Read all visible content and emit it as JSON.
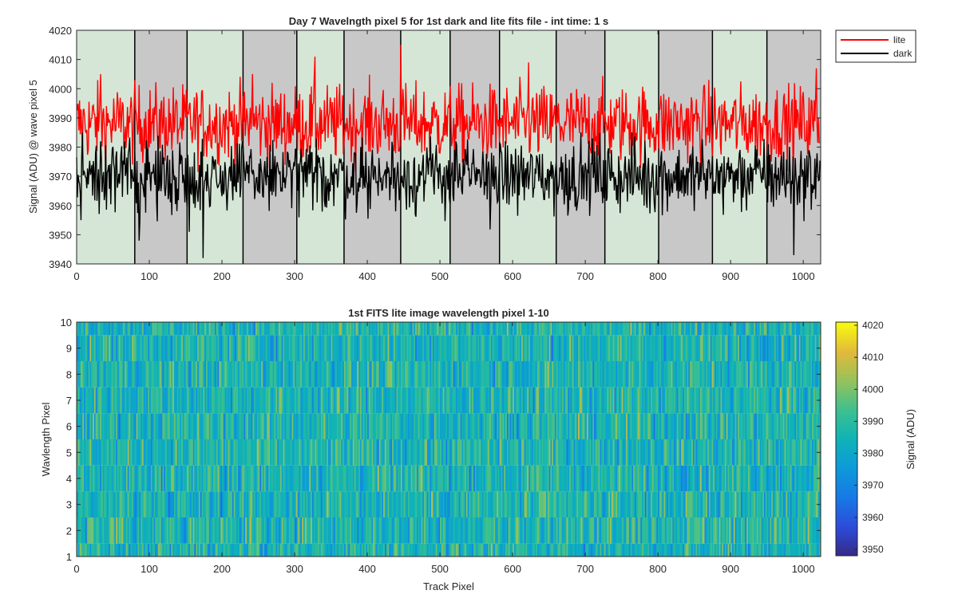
{
  "chart_data": [
    {
      "type": "line",
      "title": "Day 7 Wavelngth pixel 5 for 1st dark and lite fits file - int time: 1 s",
      "xlabel": "",
      "ylabel": "Signal (ADU) @ wave pixel 5",
      "xlim": [
        0,
        1024
      ],
      "ylim": [
        3940,
        4020
      ],
      "xticks": [
        0,
        100,
        200,
        300,
        400,
        500,
        600,
        700,
        800,
        900,
        1000
      ],
      "yticks": [
        3940,
        3950,
        3960,
        3970,
        3980,
        3990,
        4000,
        4010,
        4020
      ],
      "legend_position": "outside top-right",
      "grid": false,
      "background_bands": {
        "boundaries": [
          0,
          80,
          152,
          229,
          303,
          368,
          446,
          514,
          582,
          660,
          727,
          801,
          875,
          950,
          1024
        ],
        "colors": [
          "#d5e6d6",
          "#c8c8c8"
        ]
      },
      "series": [
        {
          "name": "lite",
          "color": "#ff0000",
          "mean": 3988,
          "min": 3964,
          "max": 4015,
          "n": 1024,
          "note_values": "noisy per-pixel signal; representative extremes kept",
          "peaks": [
            [
              446,
              4015
            ],
            [
              328,
              4011
            ],
            [
              622,
              4009
            ],
            [
              1018,
              4007
            ],
            [
              33,
              4005
            ],
            [
              242,
              4005
            ]
          ]
        },
        {
          "name": "dark",
          "color": "#000000",
          "mean": 3970,
          "min": 3942,
          "max": 3985,
          "n": 1024,
          "troughs": [
            [
              174,
              3942
            ],
            [
              987,
              3943
            ],
            [
              86,
              3948
            ],
            [
              155,
              3951
            ]
          ],
          "peaks": [
            [
              8,
              3985
            ],
            [
              710,
              3983
            ],
            [
              33,
              3982
            ]
          ]
        }
      ]
    },
    {
      "type": "heatmap",
      "title": "1st FITS lite image wavelength pixel 1-10",
      "xlabel": "Track Pixel",
      "ylabel": "Wavlength Pixel",
      "xlim": [
        0,
        1024
      ],
      "ylim": [
        1,
        10
      ],
      "xticks": [
        0,
        100,
        200,
        300,
        400,
        500,
        600,
        700,
        800,
        900,
        1000
      ],
      "yticks": [
        1,
        2,
        3,
        4,
        5,
        6,
        7,
        8,
        9,
        10
      ],
      "rows": 10,
      "columns": 1024,
      "value_range": [
        3948,
        4021
      ],
      "typical_mean": 3986,
      "colorbar": {
        "label": "Signal (ADU)",
        "ticks": [
          3950,
          3960,
          3970,
          3980,
          3990,
          4000,
          4010,
          4020
        ],
        "colormap": "parula",
        "clim": [
          3948,
          4021
        ]
      }
    }
  ]
}
